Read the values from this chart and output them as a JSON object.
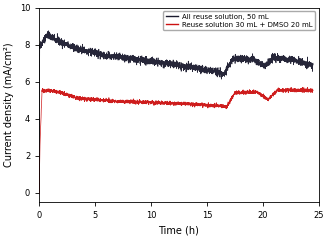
{
  "title": "",
  "xlabel": "Time (h)",
  "ylabel": "Current density (mA/cm²)",
  "xlim": [
    0,
    25
  ],
  "ylim": [
    -0.5,
    10
  ],
  "yticks": [
    0,
    2,
    4,
    6,
    8,
    10
  ],
  "xticks": [
    0,
    5,
    10,
    15,
    20,
    25
  ],
  "legend": [
    {
      "label": "All reuse solution, 50 mL",
      "color": "#1a1a2e"
    },
    {
      "label": "Reuse solution 30 mL + DMSO 20 mL",
      "color": "#cc1111"
    }
  ],
  "black_line": {
    "color": "#1a1a2e",
    "segments": [
      {
        "t_start": 0.0,
        "t_end": 0.04,
        "y_start": 0.0,
        "y_end": 7.9
      },
      {
        "t_start": 0.04,
        "t_end": 0.25,
        "y_start": 7.9,
        "y_end": 8.1
      },
      {
        "t_start": 0.25,
        "t_end": 0.7,
        "y_start": 8.1,
        "y_end": 8.55
      },
      {
        "t_start": 0.7,
        "t_end": 1.5,
        "y_start": 8.55,
        "y_end": 8.25
      },
      {
        "t_start": 1.5,
        "t_end": 3.0,
        "y_start": 8.25,
        "y_end": 7.85
      },
      {
        "t_start": 3.0,
        "t_end": 6.0,
        "y_start": 7.85,
        "y_end": 7.4
      },
      {
        "t_start": 6.0,
        "t_end": 10.0,
        "y_start": 7.4,
        "y_end": 7.1
      },
      {
        "t_start": 10.0,
        "t_end": 15.5,
        "y_start": 7.1,
        "y_end": 6.6
      },
      {
        "t_start": 15.5,
        "t_end": 16.5,
        "y_start": 6.6,
        "y_end": 6.4
      },
      {
        "t_start": 16.5,
        "t_end": 17.3,
        "y_start": 6.4,
        "y_end": 7.25
      },
      {
        "t_start": 17.3,
        "t_end": 19.2,
        "y_start": 7.25,
        "y_end": 7.2
      },
      {
        "t_start": 19.2,
        "t_end": 20.2,
        "y_start": 7.2,
        "y_end": 6.85
      },
      {
        "t_start": 20.2,
        "t_end": 21.0,
        "y_start": 6.85,
        "y_end": 7.3
      },
      {
        "t_start": 21.0,
        "t_end": 23.0,
        "y_start": 7.3,
        "y_end": 7.15
      },
      {
        "t_start": 23.0,
        "t_end": 24.5,
        "y_start": 7.15,
        "y_end": 6.85
      }
    ]
  },
  "red_line": {
    "color": "#cc1111",
    "segments": [
      {
        "t_start": 0.0,
        "t_end": 0.04,
        "y_start": 0.0,
        "y_end": 2.2
      },
      {
        "t_start": 0.04,
        "t_end": 0.25,
        "y_start": 2.2,
        "y_end": 5.55
      },
      {
        "t_start": 0.25,
        "t_end": 1.5,
        "y_start": 5.55,
        "y_end": 5.5
      },
      {
        "t_start": 1.5,
        "t_end": 3.5,
        "y_start": 5.5,
        "y_end": 5.1
      },
      {
        "t_start": 3.5,
        "t_end": 7.0,
        "y_start": 5.1,
        "y_end": 4.95
      },
      {
        "t_start": 7.0,
        "t_end": 12.0,
        "y_start": 4.95,
        "y_end": 4.85
      },
      {
        "t_start": 12.0,
        "t_end": 16.3,
        "y_start": 4.85,
        "y_end": 4.7
      },
      {
        "t_start": 16.3,
        "t_end": 16.8,
        "y_start": 4.7,
        "y_end": 4.65
      },
      {
        "t_start": 16.8,
        "t_end": 17.5,
        "y_start": 4.65,
        "y_end": 5.4
      },
      {
        "t_start": 17.5,
        "t_end": 19.5,
        "y_start": 5.4,
        "y_end": 5.45
      },
      {
        "t_start": 19.5,
        "t_end": 20.5,
        "y_start": 5.45,
        "y_end": 5.05
      },
      {
        "t_start": 20.5,
        "t_end": 21.3,
        "y_start": 5.05,
        "y_end": 5.55
      },
      {
        "t_start": 21.3,
        "t_end": 24.5,
        "y_start": 5.55,
        "y_end": 5.55
      }
    ]
  },
  "noise_amplitude_black": 0.1,
  "noise_amplitude_red": 0.05,
  "fig_width": 3.28,
  "fig_height": 2.4,
  "dpi": 100
}
